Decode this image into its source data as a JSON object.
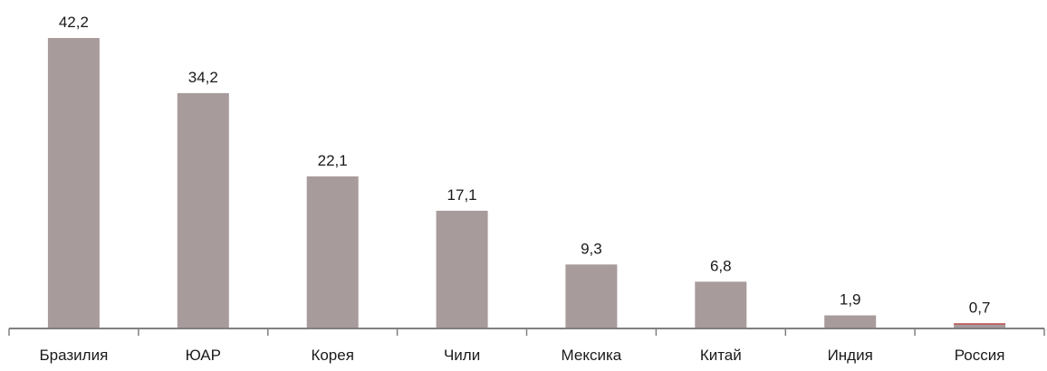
{
  "chart_data": {
    "type": "bar",
    "categories": [
      "Бразилия",
      "ЮАР",
      "Корея",
      "Чили",
      "Мексика",
      "Китай",
      "Индия",
      "Россия"
    ],
    "values": [
      42.2,
      34.2,
      22.1,
      17.1,
      9.3,
      6.8,
      1.9,
      0.7
    ],
    "value_labels": [
      "42,2",
      "34,2",
      "22,1",
      "17,1",
      "9,3",
      "6,8",
      "1,9",
      "0,7"
    ],
    "title": "",
    "xlabel": "",
    "ylabel": "",
    "ylim": [
      0,
      42.2
    ],
    "grid": false,
    "legend": "none",
    "colors": {
      "bar": "#a89b9c",
      "highlight_bar": "#c0504d",
      "axis": "#808080",
      "text": "#1a1a1a"
    },
    "highlight_category": "Россия"
  }
}
